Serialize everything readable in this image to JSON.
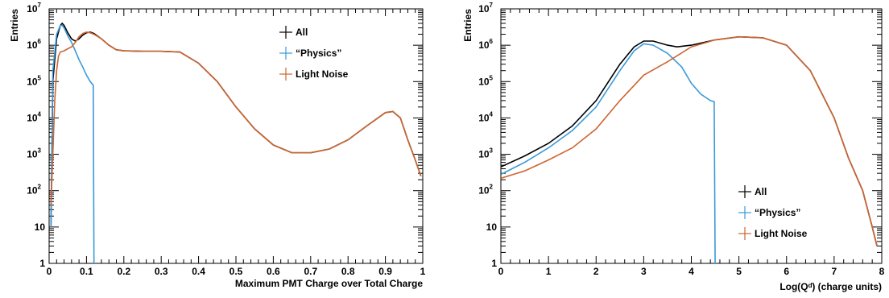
{
  "chart_data": [
    {
      "type": "line",
      "xlabel": "Maximum PMT Charge over Total Charge",
      "ylabel": "Entries",
      "xlim": [
        0,
        1
      ],
      "ylim_log10": [
        0,
        7
      ],
      "y_scale": "log",
      "grid": false,
      "legend_placement": "top-right",
      "x_ticks": [
        "0",
        "0.1",
        "0.2",
        "0.3",
        "0.4",
        "0.5",
        "0.6",
        "0.7",
        "0.8",
        "0.9",
        "1"
      ],
      "y_ticks": [
        "1",
        "10",
        "10²",
        "10³",
        "10⁴",
        "10⁵",
        "10⁶",
        "10⁷"
      ],
      "series": [
        {
          "name": "All",
          "color": "#000000",
          "x": [
            0.005,
            0.01,
            0.02,
            0.03,
            0.035,
            0.04,
            0.05,
            0.06,
            0.07,
            0.08,
            0.09,
            0.1,
            0.11,
            0.12,
            0.14,
            0.16,
            0.18,
            0.2,
            0.25,
            0.3,
            0.35,
            0.4,
            0.45,
            0.5,
            0.55,
            0.6,
            0.65,
            0.7,
            0.75,
            0.8,
            0.85,
            0.9,
            0.92,
            0.94,
            0.96,
            0.98,
            0.995
          ],
          "y": [
            10,
            100000,
            1500000,
            3500000,
            4000000,
            3500000,
            2200000,
            1500000,
            1300000,
            1500000,
            1900000,
            2200000,
            2300000,
            2100000,
            1500000,
            1000000,
            750000,
            700000,
            680000,
            680000,
            650000,
            320000,
            100000,
            20000,
            5000,
            1800,
            1100,
            1100,
            1400,
            2500,
            6000,
            14000,
            15000,
            10000,
            2500,
            700,
            250
          ]
        },
        {
          "name": "“Physics”",
          "color": "#3a9ad9",
          "x": [
            0.005,
            0.01,
            0.02,
            0.03,
            0.035,
            0.04,
            0.05,
            0.06,
            0.07,
            0.08,
            0.09,
            0.1,
            0.11,
            0.118,
            0.12,
            0.122
          ],
          "y": [
            10,
            200000,
            2000000,
            3500000,
            3500000,
            3000000,
            1800000,
            1200000,
            700000,
            400000,
            250000,
            150000,
            100000,
            80000,
            1,
            1
          ]
        },
        {
          "name": "Light Noise",
          "color": "#cc6633",
          "x": [
            0.005,
            0.01,
            0.015,
            0.02,
            0.025,
            0.03,
            0.04,
            0.05,
            0.06,
            0.07,
            0.08,
            0.09,
            0.1,
            0.11,
            0.12,
            0.14,
            0.16,
            0.18,
            0.2,
            0.25,
            0.3,
            0.35,
            0.4,
            0.45,
            0.5,
            0.55,
            0.6,
            0.65,
            0.7,
            0.75,
            0.8,
            0.85,
            0.9,
            0.92,
            0.94,
            0.96,
            0.98,
            0.995
          ],
          "y": [
            40,
            1000,
            30000,
            200000,
            500000,
            650000,
            700000,
            800000,
            900000,
            1200000,
            1700000,
            2100000,
            2300000,
            2200000,
            2000000,
            1500000,
            1000000,
            750000,
            700000,
            680000,
            680000,
            650000,
            320000,
            100000,
            20000,
            5000,
            1800,
            1100,
            1100,
            1400,
            2500,
            6000,
            14000,
            15000,
            10000,
            2500,
            700,
            250
          ]
        }
      ]
    },
    {
      "type": "line",
      "xlabel": "Log(Qᵈ) (charge units)",
      "ylabel": "Entries",
      "xlim": [
        0,
        8
      ],
      "ylim_log10": [
        0,
        7
      ],
      "y_scale": "log",
      "grid": false,
      "legend_placement": "bottom-right",
      "x_ticks": [
        "0",
        "1",
        "2",
        "3",
        "4",
        "5",
        "6",
        "7",
        "8"
      ],
      "y_ticks": [
        "1",
        "10",
        "10²",
        "10³",
        "10⁴",
        "10⁵",
        "10⁶",
        "10⁷"
      ],
      "series": [
        {
          "name": "All",
          "color": "#000000",
          "x": [
            0,
            0.5,
            1,
            1.5,
            2,
            2.5,
            2.8,
            3,
            3.2,
            3.5,
            3.7,
            4,
            4.5,
            5,
            5.5,
            6,
            6.5,
            7,
            7.3,
            7.6,
            7.8,
            7.9
          ],
          "y": [
            450,
            900,
            2000,
            6000,
            30000,
            300000,
            900000,
            1300000,
            1300000,
            1000000,
            900000,
            1000000,
            1400000,
            1700000,
            1600000,
            1000000,
            200000,
            10000,
            800,
            100,
            10,
            3
          ]
        },
        {
          "name": "“Physics”",
          "color": "#3a9ad9",
          "x": [
            0,
            0.5,
            1,
            1.5,
            2,
            2.5,
            2.8,
            3,
            3.2,
            3.5,
            3.8,
            4,
            4.2,
            4.4,
            4.48,
            4.5,
            4.52
          ],
          "y": [
            280,
            600,
            1500,
            4500,
            20000,
            200000,
            700000,
            1100000,
            1000000,
            600000,
            250000,
            90000,
            45000,
            30000,
            28000,
            1,
            1
          ]
        },
        {
          "name": "Light Noise",
          "color": "#cc6633",
          "x": [
            0,
            0.5,
            1,
            1.5,
            2,
            2.5,
            3,
            3.5,
            4,
            4.5,
            5,
            5.5,
            6,
            6.5,
            7,
            7.3,
            7.6,
            7.8,
            7.9
          ],
          "y": [
            220,
            350,
            700,
            1500,
            5000,
            30000,
            150000,
            350000,
            900000,
            1400000,
            1700000,
            1600000,
            1000000,
            200000,
            10000,
            800,
            100,
            10,
            3
          ]
        }
      ]
    }
  ]
}
